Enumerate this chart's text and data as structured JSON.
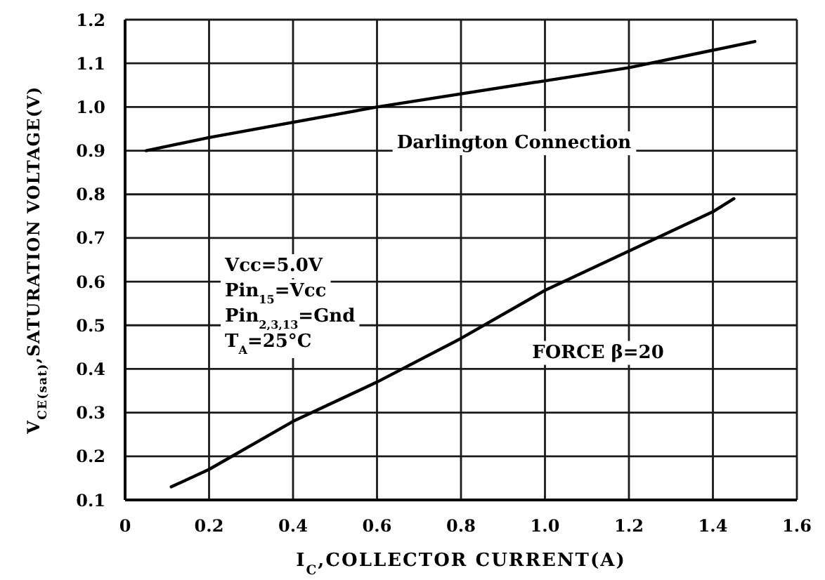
{
  "chart_data": {
    "type": "line",
    "xlabel": "I$_{C}$,COLLECTOR CURRENT(A)",
    "ylabel": "V$_{CE(sat)}$,SATURATION VOLTAGE(V)",
    "annotations": [
      "Vcc=5.0V",
      "Pin$_{15}$=Vcc",
      "Pin$_{2,3,13}$=Gnd",
      "T$_{A}$=25°C"
    ],
    "series": [
      {
        "name": "Darlington Connection",
        "color": "#000000",
        "x": [
          0.05,
          0.2,
          0.6,
          1.0,
          1.2,
          1.4,
          1.5
        ],
        "values": [
          0.9,
          0.93,
          1.0,
          1.06,
          1.09,
          1.13,
          1.15
        ]
      },
      {
        "name": "FORCE β=20",
        "color": "#000000",
        "x": [
          0.11,
          0.2,
          0.4,
          0.6,
          0.8,
          1.0,
          1.2,
          1.4,
          1.45
        ],
        "values": [
          0.13,
          0.17,
          0.28,
          0.37,
          0.47,
          0.58,
          0.67,
          0.76,
          0.79
        ]
      }
    ],
    "xlim": [
      0,
      1.6
    ],
    "xticks": [
      0,
      0.2,
      0.4,
      0.6,
      0.8,
      {
        "value": 1,
        "label": "1.0"
      },
      1.2,
      1.4,
      1.6
    ],
    "ylim": [
      0.1,
      1.2
    ],
    "yticks": [
      0.1,
      0.2,
      0.3,
      0.4,
      0.5,
      0.6,
      0.7,
      0.8,
      0.9,
      {
        "value": 1,
        "label": "1.0"
      },
      1.1,
      1.2
    ],
    "grid": true
  }
}
